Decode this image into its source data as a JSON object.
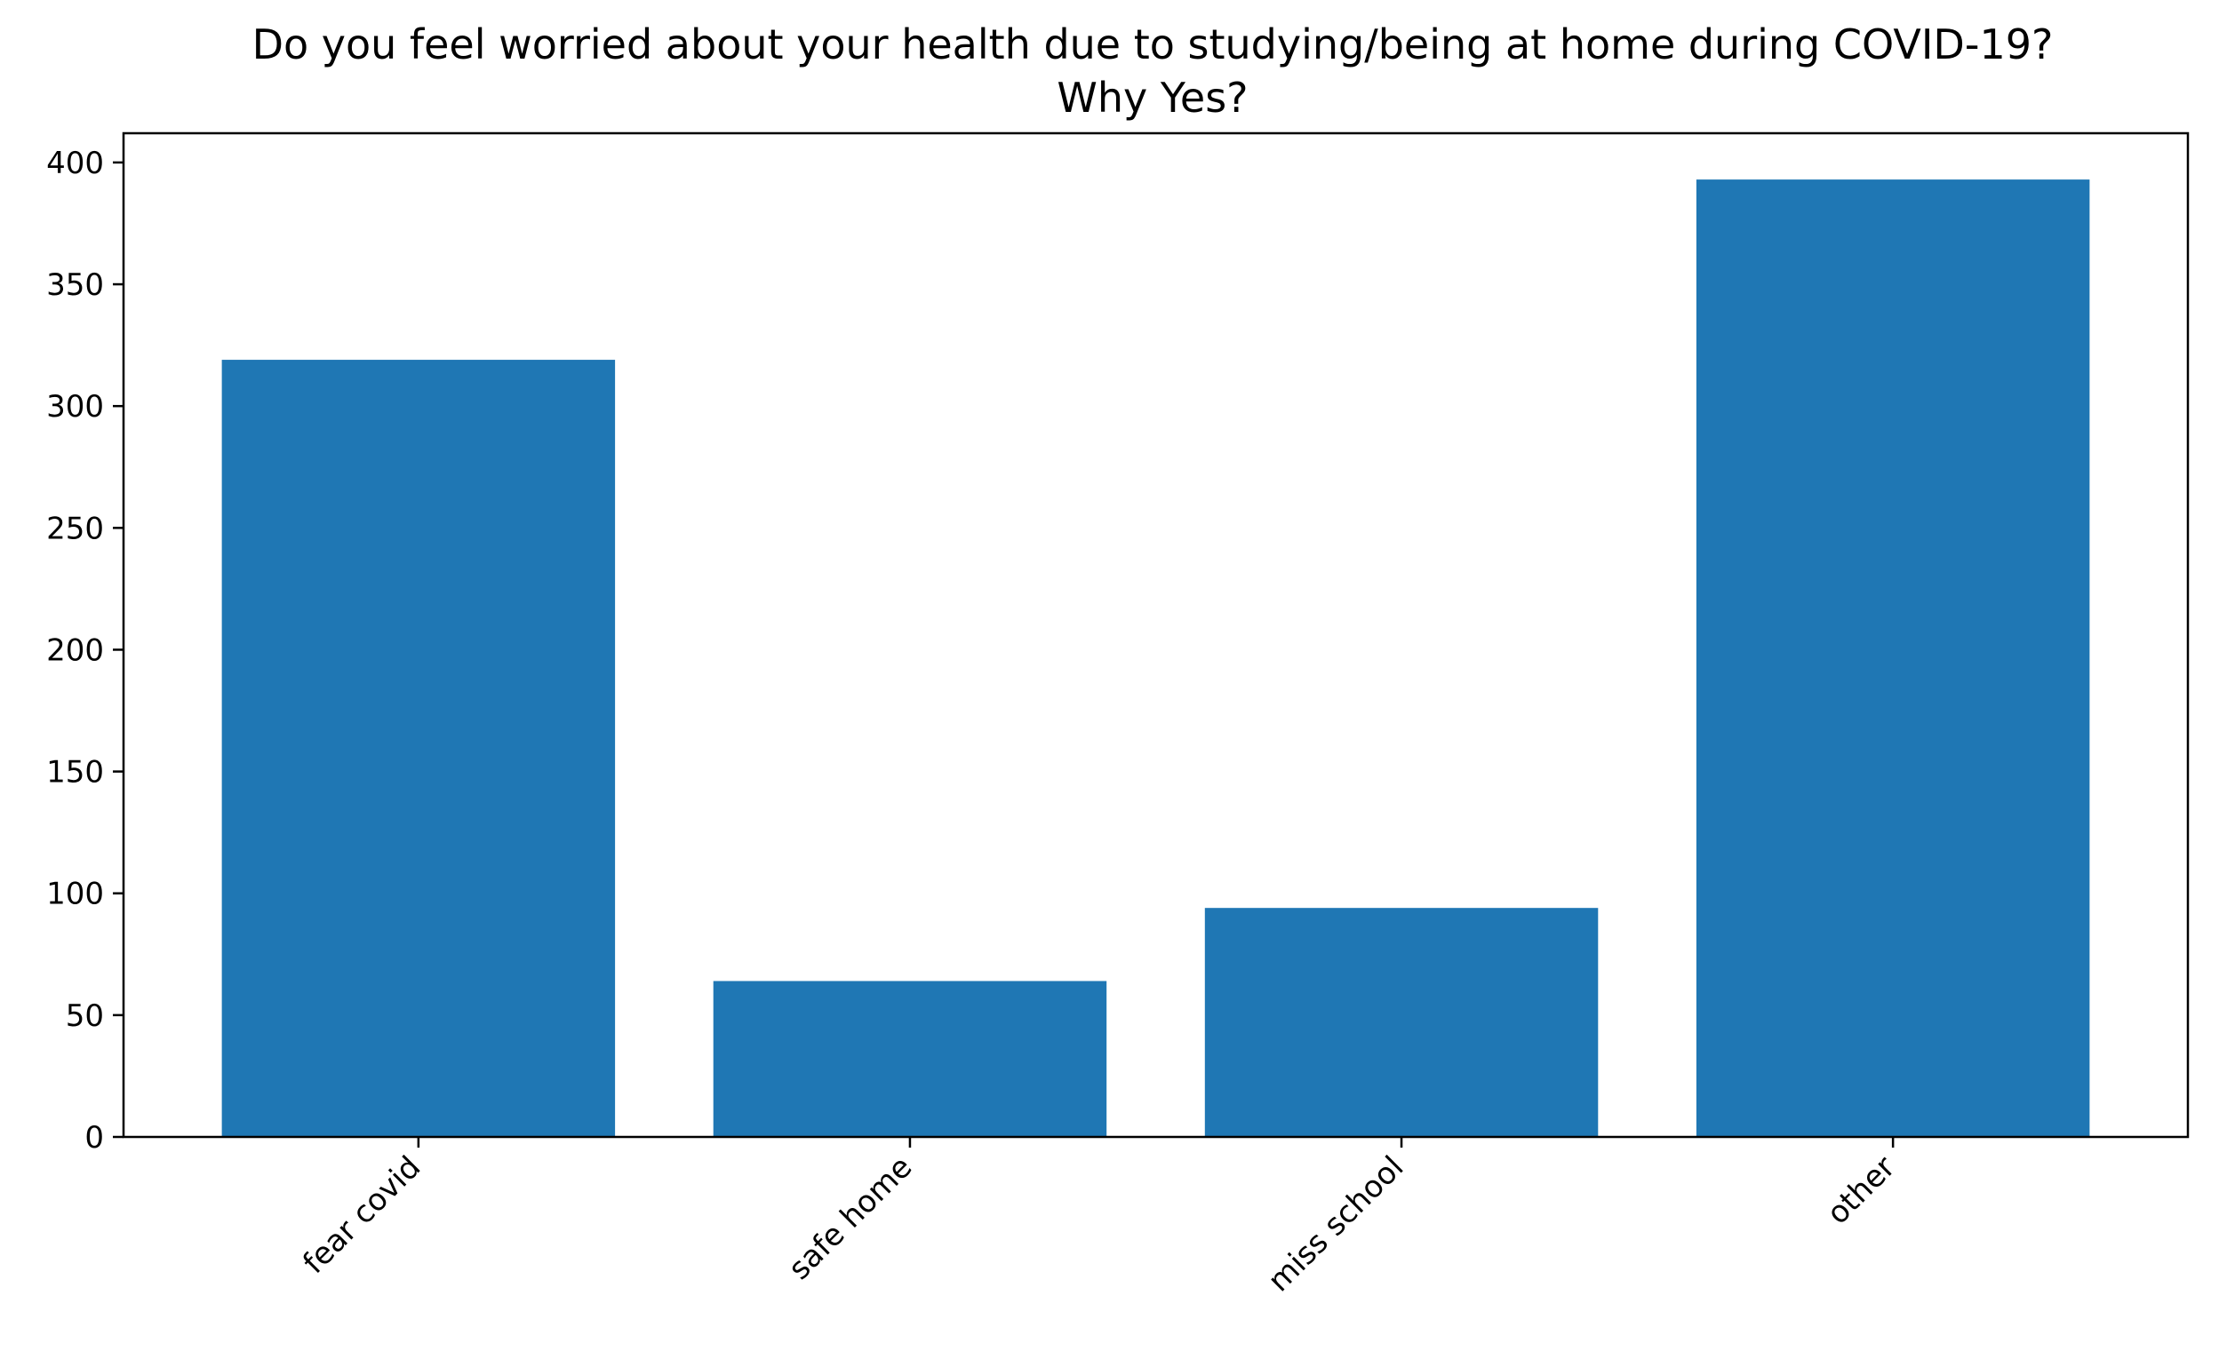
{
  "chart_data": {
    "type": "bar",
    "title": "Do you feel worried about your health due to studying/being at home during COVID-19?\nWhy Yes?",
    "title_lines": [
      "Do you feel worried about your health due to studying/being at home during COVID-19?",
      "Why Yes?"
    ],
    "xlabel": "",
    "ylabel": "",
    "categories": [
      "fear covid",
      "safe home",
      "miss school",
      "other"
    ],
    "values": [
      319,
      64,
      94,
      393
    ],
    "ylim": [
      0,
      412
    ],
    "yticks": [
      0,
      50,
      100,
      150,
      200,
      250,
      300,
      350,
      400
    ],
    "x_tick_rotation_deg": 45,
    "grid": false,
    "legend": "none",
    "bar_color": "#1f77b4"
  }
}
